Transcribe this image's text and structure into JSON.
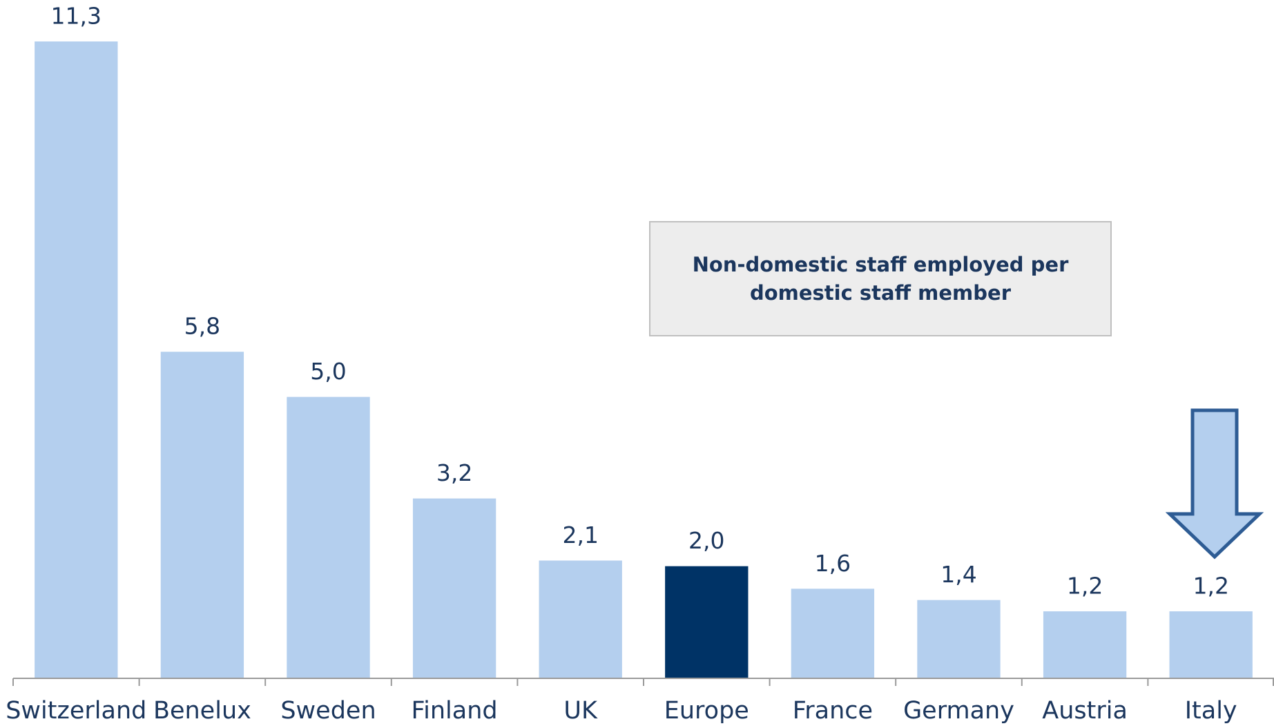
{
  "chart_data": {
    "type": "bar",
    "categories": [
      "Switzerland",
      "Benelux",
      "Sweden",
      "Finland",
      "UK",
      "Europe",
      "France",
      "Germany",
      "Austria",
      "Italy"
    ],
    "values": [
      11.3,
      5.8,
      5.0,
      3.2,
      2.1,
      2.0,
      1.6,
      1.4,
      1.2,
      1.2
    ],
    "value_labels": [
      "11,3",
      "5,8",
      "5,0",
      "3,2",
      "2,1",
      "2,0",
      "1,6",
      "1,4",
      "1,2",
      "1,2"
    ],
    "colors": [
      "#b4cfee",
      "#b4cfee",
      "#b4cfee",
      "#b4cfee",
      "#b4cfee",
      "#003366",
      "#b4cfee",
      "#b4cfee",
      "#b4cfee",
      "#b4cfee"
    ],
    "annotation": [
      "Non-domestic staff employed per",
      "domestic staff member"
    ]
  }
}
